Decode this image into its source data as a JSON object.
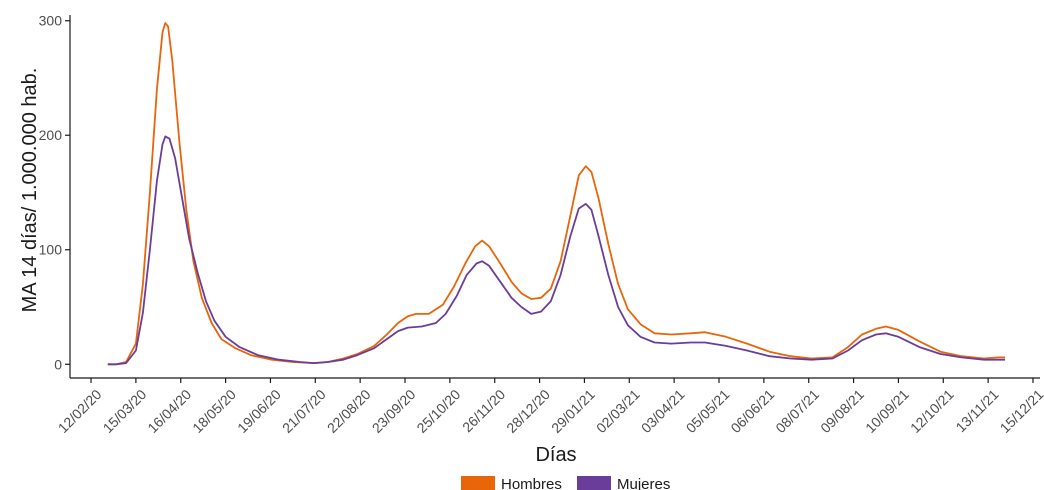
{
  "chart_data": {
    "type": "line",
    "title": "",
    "xlabel": "Días",
    "ylabel": "MA 14 días/ 1.000.000 hab.",
    "ylim": [
      -12,
      305
    ],
    "yticks": [
      0,
      100,
      200,
      300
    ],
    "xlim": [
      "2020-01-28",
      "2021-12-20"
    ],
    "xtick_labels": [
      "12/02/20",
      "15/03/20",
      "16/04/20",
      "18/05/20",
      "19/06/20",
      "21/07/20",
      "22/08/20",
      "23/09/20",
      "25/10/20",
      "26/11/20",
      "28/12/20",
      "29/01/21",
      "02/03/21",
      "03/04/21",
      "05/05/21",
      "06/06/21",
      "08/07/21",
      "09/08/21",
      "10/09/21",
      "12/10/21",
      "13/11/21",
      "15/12/21"
    ],
    "grid": false,
    "legend": {
      "placement": "bottom"
    },
    "series": [
      {
        "name": "Hombres",
        "color": "#e8650a",
        "points": [
          [
            "2020-02-24",
            0
          ],
          [
            "2020-03-01",
            0
          ],
          [
            "2020-03-08",
            2
          ],
          [
            "2020-03-15",
            18
          ],
          [
            "2020-03-20",
            70
          ],
          [
            "2020-03-25",
            150
          ],
          [
            "2020-03-30",
            240
          ],
          [
            "2020-04-03",
            290
          ],
          [
            "2020-04-05",
            298
          ],
          [
            "2020-04-07",
            295
          ],
          [
            "2020-04-10",
            265
          ],
          [
            "2020-04-15",
            195
          ],
          [
            "2020-04-20",
            135
          ],
          [
            "2020-04-25",
            90
          ],
          [
            "2020-05-01",
            58
          ],
          [
            "2020-05-08",
            36
          ],
          [
            "2020-05-15",
            22
          ],
          [
            "2020-05-25",
            14
          ],
          [
            "2020-06-05",
            8
          ],
          [
            "2020-06-20",
            4
          ],
          [
            "2020-07-05",
            2
          ],
          [
            "2020-07-20",
            1
          ],
          [
            "2020-07-30",
            2
          ],
          [
            "2020-08-10",
            5
          ],
          [
            "2020-08-20",
            9
          ],
          [
            "2020-09-01",
            16
          ],
          [
            "2020-09-10",
            26
          ],
          [
            "2020-09-18",
            36
          ],
          [
            "2020-09-25",
            42
          ],
          [
            "2020-10-01",
            44
          ],
          [
            "2020-10-10",
            44
          ],
          [
            "2020-10-20",
            52
          ],
          [
            "2020-10-28",
            68
          ],
          [
            "2020-11-05",
            88
          ],
          [
            "2020-11-12",
            103
          ],
          [
            "2020-11-17",
            108
          ],
          [
            "2020-11-22",
            103
          ],
          [
            "2020-11-30",
            88
          ],
          [
            "2020-12-08",
            72
          ],
          [
            "2020-12-15",
            62
          ],
          [
            "2020-12-22",
            57
          ],
          [
            "2020-12-29",
            58
          ],
          [
            "2021-01-05",
            66
          ],
          [
            "2021-01-12",
            90
          ],
          [
            "2021-01-19",
            130
          ],
          [
            "2021-01-25",
            165
          ],
          [
            "2021-01-30",
            173
          ],
          [
            "2021-02-03",
            168
          ],
          [
            "2021-02-08",
            145
          ],
          [
            "2021-02-15",
            105
          ],
          [
            "2021-02-22",
            70
          ],
          [
            "2021-03-01",
            48
          ],
          [
            "2021-03-10",
            35
          ],
          [
            "2021-03-20",
            27
          ],
          [
            "2021-04-01",
            26
          ],
          [
            "2021-04-15",
            27
          ],
          [
            "2021-04-25",
            28
          ],
          [
            "2021-05-10",
            24
          ],
          [
            "2021-05-25",
            18
          ],
          [
            "2021-06-10",
            11
          ],
          [
            "2021-06-25",
            7
          ],
          [
            "2021-07-10",
            5
          ],
          [
            "2021-07-25",
            6
          ],
          [
            "2021-08-05",
            15
          ],
          [
            "2021-08-15",
            26
          ],
          [
            "2021-08-25",
            31
          ],
          [
            "2021-09-01",
            33
          ],
          [
            "2021-09-10",
            30
          ],
          [
            "2021-09-25",
            20
          ],
          [
            "2021-10-10",
            11
          ],
          [
            "2021-10-25",
            7
          ],
          [
            "2021-11-10",
            5
          ],
          [
            "2021-11-20",
            6
          ],
          [
            "2021-11-25",
            6
          ]
        ]
      },
      {
        "name": "Mujeres",
        "color": "#6a3d9a",
        "points": [
          [
            "2020-02-24",
            0
          ],
          [
            "2020-03-01",
            0
          ],
          [
            "2020-03-08",
            1
          ],
          [
            "2020-03-15",
            12
          ],
          [
            "2020-03-20",
            45
          ],
          [
            "2020-03-25",
            100
          ],
          [
            "2020-03-30",
            160
          ],
          [
            "2020-04-03",
            192
          ],
          [
            "2020-04-05",
            199
          ],
          [
            "2020-04-08",
            197
          ],
          [
            "2020-04-12",
            180
          ],
          [
            "2020-04-17",
            145
          ],
          [
            "2020-04-22",
            110
          ],
          [
            "2020-04-28",
            80
          ],
          [
            "2020-05-04",
            55
          ],
          [
            "2020-05-10",
            38
          ],
          [
            "2020-05-18",
            24
          ],
          [
            "2020-05-28",
            15
          ],
          [
            "2020-06-10",
            8
          ],
          [
            "2020-06-25",
            4
          ],
          [
            "2020-07-10",
            2
          ],
          [
            "2020-07-20",
            1
          ],
          [
            "2020-07-30",
            2
          ],
          [
            "2020-08-10",
            4
          ],
          [
            "2020-08-20",
            8
          ],
          [
            "2020-09-01",
            14
          ],
          [
            "2020-09-10",
            22
          ],
          [
            "2020-09-18",
            29
          ],
          [
            "2020-09-25",
            32
          ],
          [
            "2020-10-05",
            33
          ],
          [
            "2020-10-15",
            36
          ],
          [
            "2020-10-22",
            44
          ],
          [
            "2020-10-30",
            60
          ],
          [
            "2020-11-06",
            78
          ],
          [
            "2020-11-13",
            88
          ],
          [
            "2020-11-17",
            90
          ],
          [
            "2020-11-22",
            86
          ],
          [
            "2020-11-30",
            72
          ],
          [
            "2020-12-08",
            58
          ],
          [
            "2020-12-15",
            50
          ],
          [
            "2020-12-22",
            44
          ],
          [
            "2020-12-29",
            46
          ],
          [
            "2021-01-05",
            55
          ],
          [
            "2021-01-12",
            78
          ],
          [
            "2021-01-19",
            112
          ],
          [
            "2021-01-25",
            136
          ],
          [
            "2021-01-30",
            140
          ],
          [
            "2021-02-03",
            135
          ],
          [
            "2021-02-08",
            112
          ],
          [
            "2021-02-15",
            78
          ],
          [
            "2021-02-22",
            50
          ],
          [
            "2021-03-01",
            34
          ],
          [
            "2021-03-10",
            24
          ],
          [
            "2021-03-20",
            19
          ],
          [
            "2021-04-01",
            18
          ],
          [
            "2021-04-15",
            19
          ],
          [
            "2021-04-25",
            19
          ],
          [
            "2021-05-10",
            16
          ],
          [
            "2021-05-25",
            12
          ],
          [
            "2021-06-10",
            7
          ],
          [
            "2021-06-25",
            5
          ],
          [
            "2021-07-10",
            4
          ],
          [
            "2021-07-25",
            5
          ],
          [
            "2021-08-05",
            12
          ],
          [
            "2021-08-15",
            21
          ],
          [
            "2021-08-25",
            26
          ],
          [
            "2021-09-01",
            27
          ],
          [
            "2021-09-10",
            24
          ],
          [
            "2021-09-25",
            15
          ],
          [
            "2021-10-10",
            9
          ],
          [
            "2021-10-25",
            6
          ],
          [
            "2021-11-10",
            4
          ],
          [
            "2021-11-20",
            4
          ],
          [
            "2021-11-25",
            4
          ]
        ]
      }
    ]
  }
}
